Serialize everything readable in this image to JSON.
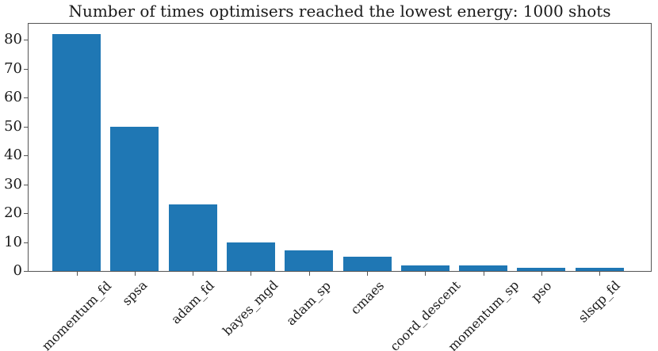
{
  "chart_data": {
    "type": "bar",
    "title": "Number of times optimisers reached the lowest energy: 1000 shots",
    "categories": [
      "momentum_fd",
      "spsa",
      "adam_fd",
      "bayes_mgd",
      "adam_sp",
      "cmaes",
      "coord_descent",
      "momentum_sp",
      "pso",
      "slsqp_fd"
    ],
    "values": [
      82,
      50,
      23,
      10,
      7,
      5,
      2,
      2,
      1,
      1
    ],
    "xlabel": "",
    "ylabel": "",
    "yticks": [
      0,
      10,
      20,
      30,
      40,
      50,
      60,
      70,
      80
    ],
    "ylim": [
      0,
      86.1
    ],
    "xtick_rotation_deg": 45,
    "grid": false,
    "legend": false,
    "bar_color": "#1f77b4",
    "axis_color": "#555555",
    "text_color": "#1a1a1a"
  }
}
